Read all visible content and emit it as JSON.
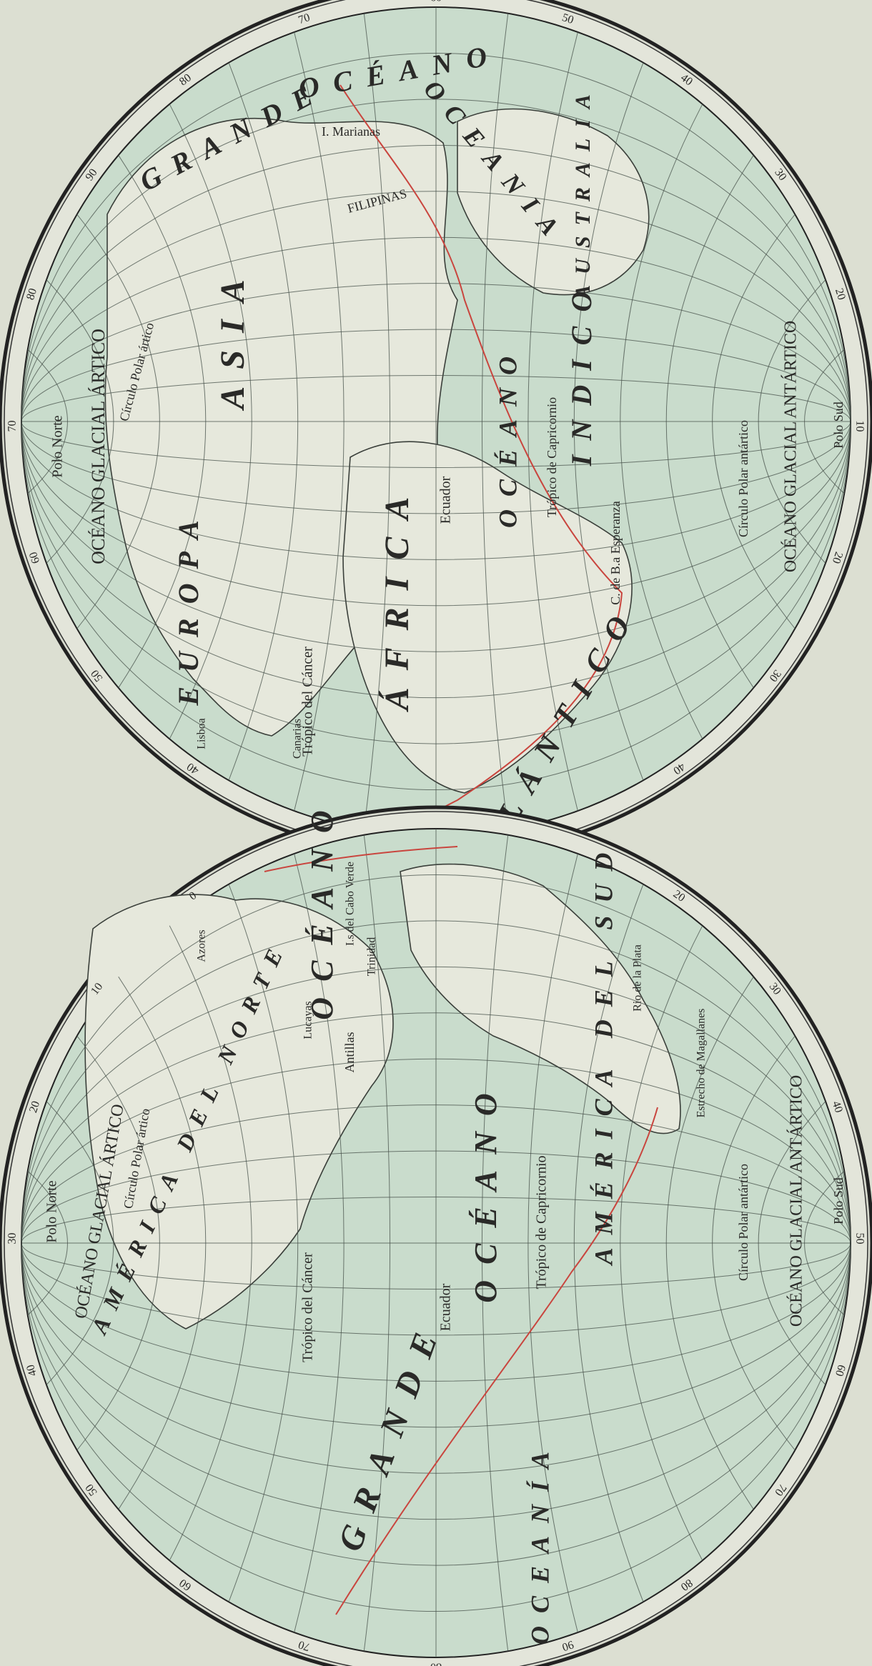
{
  "hemispheres": [
    {
      "labels": [
        "GRANDE",
        "OCÉANO",
        "I. Marianas",
        "FILIPINAS",
        "OCEANIA",
        "AUSTRALIA",
        "Polo Norte",
        "OCÉANO GLACIAL ÁRTICO",
        "Círculo Polar ártico",
        "EUROPA",
        "ASIA",
        "ÁFRICA",
        "Ecuador",
        "Trópico del Cáncer",
        "Canarias",
        "Lisboa",
        "OCÉANO",
        "Trópico de Capricornio",
        "INDICO",
        "C. de B.a Esperanza",
        "ATLÁNTICO",
        "Círculo Polar antártico",
        "OCÉANO GLACIAL ANTÁRTICO",
        "Polo Sud"
      ],
      "rim_numbers": [
        40,
        50,
        60,
        70,
        80,
        90,
        80,
        70,
        60,
        50,
        40,
        30,
        20,
        10,
        20,
        30,
        40
      ]
    },
    {
      "labels": [
        "Polo Norte",
        "OCÉANO GLACIAL ÁRTICO",
        "Círculo Polar ártico",
        "AMÉRICA DEL NORTE",
        "Azores",
        "I.s del Cabo Verde",
        "Lucayas",
        "Antillas",
        "Trinidad",
        "OCÉANO",
        "AMÉRICA DEL SUD",
        "Rio de la Plata",
        "Estrecho de Magallanes",
        "Trópico del Cáncer",
        "Ecuador",
        "Trópico de Capricornio",
        "GRANDE",
        "OCÉANO",
        "OCEANÍA",
        "Círculo Polar antártico",
        "OCÉANO GLACIAL ANTÁRTICO",
        "Polo Sud"
      ],
      "rim_numbers": [
        20,
        30,
        40,
        50,
        60,
        70,
        80,
        90,
        80,
        70,
        60,
        50,
        40,
        30,
        20,
        10,
        0
      ]
    }
  ]
}
